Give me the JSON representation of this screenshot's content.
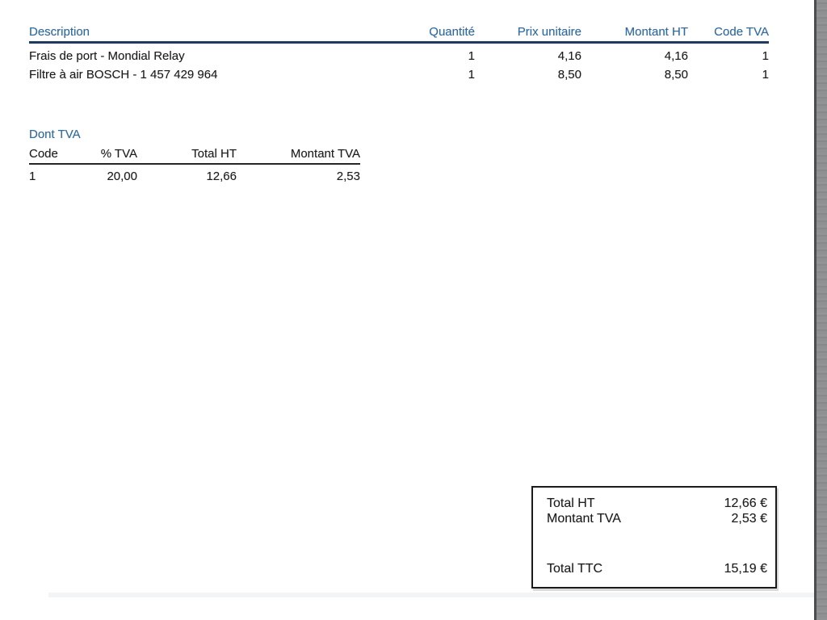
{
  "items_table": {
    "headers": [
      "Description",
      "Quantité",
      "Prix unitaire",
      "Montant HT",
      "Code TVA"
    ],
    "rows": [
      {
        "description": "Frais de port - Mondial Relay",
        "quantite": "1",
        "prix_unitaire": "4,16",
        "montant_ht": "4,16",
        "code_tva": "1"
      },
      {
        "description": "Filtre à air BOSCH - 1 457 429 964",
        "quantite": "1",
        "prix_unitaire": "8,50",
        "montant_ht": "8,50",
        "code_tva": "1"
      }
    ]
  },
  "tva_section": {
    "title": "Dont TVA",
    "headers": [
      "Code",
      "% TVA",
      "Total HT",
      "Montant TVA"
    ],
    "rows": [
      {
        "code": "1",
        "pct_tva": "20,00",
        "total_ht": "12,66",
        "montant_tva": "2,53"
      }
    ]
  },
  "totals_box": {
    "total_ht_label": "Total HT",
    "total_ht_value": "12,66 €",
    "montant_tva_label": "Montant TVA",
    "montant_tva_value": "2,53 €",
    "total_ttc_label": "Total TTC",
    "total_ttc_value": "15,19 €"
  },
  "colors": {
    "accent_blue": "#2e6da4",
    "underline_navy": "#1f3a60",
    "text": "#1c1c1c",
    "scan_edge_gray": "#8e9092"
  }
}
